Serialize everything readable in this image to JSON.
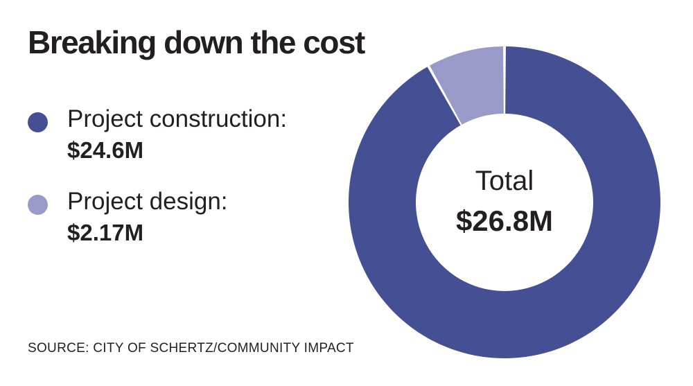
{
  "title": "Breaking down the cost",
  "source": "SOURCE: CITY OF SCHERTZ/COMMUNITY IMPACT",
  "center": {
    "label": "Total",
    "value": "$26.8M"
  },
  "colors": {
    "construction": "#454f93",
    "design": "#9a9ac9",
    "background": "#ffffff"
  },
  "legend": [
    {
      "label": "Project construction:",
      "value": "$24.6M"
    },
    {
      "label": "Project design:",
      "value": "$2.17M"
    }
  ],
  "chart_data": {
    "type": "pie",
    "title": "Breaking down the cost",
    "categories": [
      "Project construction",
      "Project design"
    ],
    "values": [
      24.6,
      2.17
    ],
    "value_labels": [
      "$24.6M",
      "$2.17M"
    ],
    "total": 26.8,
    "total_label": "$26.8M",
    "donut": true,
    "legend": "left"
  }
}
